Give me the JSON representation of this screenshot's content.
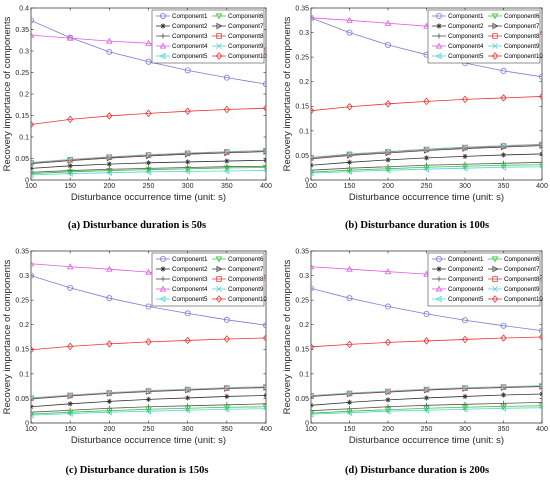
{
  "figure": {
    "colors": {
      "Component1": "#7b7bd8",
      "Component2": "#333333",
      "Component3": "#555555",
      "Component4": "#e05ae0",
      "Component5": "#49d8d8",
      "Component6": "#3fbf3f",
      "Component7": "#444444",
      "Component8": "#dd4444",
      "Component9": "#66cccc",
      "Component10": "#ee3333"
    }
  },
  "chart_data": [
    {
      "type": "line",
      "caption": "(a) Disturbance duration is 50s",
      "xlabel": "Disturbance occurrence time (unit: s)",
      "ylabel": "Recovery importance of components",
      "xlim": [
        100,
        400
      ],
      "ylim": [
        0,
        0.4
      ],
      "x_ticks": [
        "100",
        "150",
        "200",
        "250",
        "300",
        "350",
        "400"
      ],
      "y_ticks": [
        "0",
        "0.05",
        "0.1",
        "0.15",
        "0.2",
        "0.25",
        "0.3",
        "0.35",
        "0.4"
      ],
      "x": [
        100,
        150,
        200,
        250,
        300,
        350,
        400
      ],
      "legend_position": "top-right",
      "grid": false,
      "series": [
        {
          "name": "Component1",
          "marker": "circle",
          "values": [
            0.371,
            0.331,
            0.298,
            0.275,
            0.255,
            0.238,
            0.223
          ]
        },
        {
          "name": "Component2",
          "marker": "star",
          "values": [
            0.027,
            0.033,
            0.037,
            0.04,
            0.042,
            0.044,
            0.046
          ]
        },
        {
          "name": "Component3",
          "marker": "plus",
          "values": [
            0.018,
            0.022,
            0.025,
            0.027,
            0.029,
            0.031,
            0.032
          ]
        },
        {
          "name": "Component4",
          "marker": "triangle-up",
          "values": [
            0.337,
            0.33,
            0.323,
            0.318,
            0.313,
            0.309,
            0.305
          ]
        },
        {
          "name": "Component5",
          "marker": "triangle-left",
          "values": [
            0.012,
            0.015,
            0.017,
            0.019,
            0.02,
            0.021,
            0.022
          ]
        },
        {
          "name": "Component6",
          "marker": "triangle-down",
          "values": [
            0.015,
            0.019,
            0.022,
            0.024,
            0.026,
            0.028,
            0.029
          ]
        },
        {
          "name": "Component7",
          "marker": "triangle-right",
          "values": [
            0.038,
            0.045,
            0.051,
            0.056,
            0.06,
            0.063,
            0.066
          ]
        },
        {
          "name": "Component8",
          "marker": "square",
          "values": [
            0.04,
            0.047,
            0.053,
            0.058,
            0.062,
            0.065,
            0.068
          ]
        },
        {
          "name": "Component9",
          "marker": "x",
          "values": [
            0.041,
            0.048,
            0.054,
            0.059,
            0.063,
            0.066,
            0.069
          ]
        },
        {
          "name": "Component10",
          "marker": "diamond",
          "values": [
            0.129,
            0.141,
            0.149,
            0.155,
            0.16,
            0.164,
            0.167
          ]
        }
      ]
    },
    {
      "type": "line",
      "caption": "(b) Disturbance duration is 100s",
      "xlabel": "Disturbance occurrence time (unit: s)",
      "ylabel": "Recovery importance of components",
      "xlim": [
        100,
        400
      ],
      "ylim": [
        0,
        0.35
      ],
      "x_ticks": [
        "100",
        "150",
        "200",
        "250",
        "300",
        "350",
        "400"
      ],
      "y_ticks": [
        "0",
        "0.05",
        "0.1",
        "0.15",
        "0.2",
        "0.25",
        "0.3",
        "0.35"
      ],
      "x": [
        100,
        150,
        200,
        250,
        300,
        350,
        400
      ],
      "legend_position": "top-right",
      "grid": false,
      "series": [
        {
          "name": "Component1",
          "marker": "circle",
          "values": [
            0.33,
            0.3,
            0.275,
            0.255,
            0.238,
            0.222,
            0.21
          ]
        },
        {
          "name": "Component2",
          "marker": "star",
          "values": [
            0.03,
            0.036,
            0.041,
            0.045,
            0.048,
            0.051,
            0.053
          ]
        },
        {
          "name": "Component3",
          "marker": "plus",
          "values": [
            0.02,
            0.024,
            0.027,
            0.03,
            0.032,
            0.034,
            0.036
          ]
        },
        {
          "name": "Component4",
          "marker": "triangle-up",
          "values": [
            0.33,
            0.325,
            0.319,
            0.313,
            0.308,
            0.304,
            0.3
          ]
        },
        {
          "name": "Component5",
          "marker": "triangle-left",
          "values": [
            0.014,
            0.017,
            0.02,
            0.022,
            0.024,
            0.026,
            0.027
          ]
        },
        {
          "name": "Component6",
          "marker": "triangle-down",
          "values": [
            0.016,
            0.02,
            0.023,
            0.026,
            0.028,
            0.03,
            0.031
          ]
        },
        {
          "name": "Component7",
          "marker": "triangle-right",
          "values": [
            0.043,
            0.05,
            0.055,
            0.06,
            0.064,
            0.067,
            0.07
          ]
        },
        {
          "name": "Component8",
          "marker": "square",
          "values": [
            0.045,
            0.052,
            0.057,
            0.062,
            0.066,
            0.069,
            0.072
          ]
        },
        {
          "name": "Component9",
          "marker": "x",
          "values": [
            0.046,
            0.053,
            0.058,
            0.063,
            0.067,
            0.07,
            0.073
          ]
        },
        {
          "name": "Component10",
          "marker": "diamond",
          "values": [
            0.141,
            0.149,
            0.155,
            0.16,
            0.164,
            0.167,
            0.17
          ]
        }
      ]
    },
    {
      "type": "line",
      "caption": "(c) Disturbance duration is 150s",
      "xlabel": "Disturbance occurrence time (unit: s)",
      "ylabel": "Recovery importance of components",
      "xlim": [
        100,
        400
      ],
      "ylim": [
        0,
        0.35
      ],
      "x_ticks": [
        "100",
        "150",
        "200",
        "250",
        "300",
        "350",
        "400"
      ],
      "y_ticks": [
        "0",
        "0.05",
        "0.1",
        "0.15",
        "0.2",
        "0.25",
        "0.3",
        "0.35"
      ],
      "x": [
        100,
        150,
        200,
        250,
        300,
        350,
        400
      ],
      "legend_position": "top-right",
      "grid": false,
      "series": [
        {
          "name": "Component1",
          "marker": "circle",
          "values": [
            0.3,
            0.275,
            0.254,
            0.237,
            0.223,
            0.21,
            0.199
          ]
        },
        {
          "name": "Component2",
          "marker": "star",
          "values": [
            0.033,
            0.039,
            0.044,
            0.048,
            0.051,
            0.054,
            0.056
          ]
        },
        {
          "name": "Component3",
          "marker": "plus",
          "values": [
            0.022,
            0.026,
            0.03,
            0.033,
            0.035,
            0.037,
            0.039
          ]
        },
        {
          "name": "Component4",
          "marker": "triangle-up",
          "values": [
            0.324,
            0.318,
            0.313,
            0.307,
            0.302,
            0.298,
            0.295
          ]
        },
        {
          "name": "Component5",
          "marker": "triangle-left",
          "values": [
            0.016,
            0.019,
            0.022,
            0.024,
            0.026,
            0.028,
            0.029
          ]
        },
        {
          "name": "Component6",
          "marker": "triangle-down",
          "values": [
            0.018,
            0.022,
            0.025,
            0.028,
            0.03,
            0.032,
            0.033
          ]
        },
        {
          "name": "Component7",
          "marker": "triangle-right",
          "values": [
            0.049,
            0.055,
            0.06,
            0.064,
            0.067,
            0.07,
            0.072
          ]
        },
        {
          "name": "Component8",
          "marker": "square",
          "values": [
            0.05,
            0.056,
            0.061,
            0.065,
            0.068,
            0.071,
            0.073
          ]
        },
        {
          "name": "Component9",
          "marker": "x",
          "values": [
            0.051,
            0.057,
            0.062,
            0.066,
            0.069,
            0.072,
            0.074
          ]
        },
        {
          "name": "Component10",
          "marker": "diamond",
          "values": [
            0.149,
            0.156,
            0.161,
            0.165,
            0.168,
            0.171,
            0.173
          ]
        }
      ]
    },
    {
      "type": "line",
      "caption": "(d) Disturbance duration is 200s",
      "xlabel": "Disturbance occurrence time (unit: s)",
      "ylabel": "Recovery importance of components",
      "xlim": [
        100,
        400
      ],
      "ylim": [
        0,
        0.35
      ],
      "x_ticks": [
        "100",
        "150",
        "200",
        "250",
        "300",
        "350",
        "400"
      ],
      "y_ticks": [
        "0",
        "0.05",
        "0.1",
        "0.15",
        "0.2",
        "0.25",
        "0.3",
        "0.35"
      ],
      "x": [
        100,
        150,
        200,
        250,
        300,
        350,
        400
      ],
      "legend_position": "top-right",
      "grid": false,
      "series": [
        {
          "name": "Component1",
          "marker": "circle",
          "values": [
            0.274,
            0.254,
            0.237,
            0.222,
            0.209,
            0.198,
            0.188
          ]
        },
        {
          "name": "Component2",
          "marker": "star",
          "values": [
            0.036,
            0.042,
            0.047,
            0.051,
            0.054,
            0.057,
            0.059
          ]
        },
        {
          "name": "Component3",
          "marker": "plus",
          "values": [
            0.025,
            0.029,
            0.033,
            0.036,
            0.038,
            0.04,
            0.042
          ]
        },
        {
          "name": "Component4",
          "marker": "triangle-up",
          "values": [
            0.318,
            0.313,
            0.308,
            0.303,
            0.299,
            0.296,
            0.293
          ]
        },
        {
          "name": "Component5",
          "marker": "triangle-left",
          "values": [
            0.018,
            0.021,
            0.024,
            0.026,
            0.028,
            0.03,
            0.031
          ]
        },
        {
          "name": "Component6",
          "marker": "triangle-down",
          "values": [
            0.02,
            0.024,
            0.027,
            0.03,
            0.032,
            0.034,
            0.035
          ]
        },
        {
          "name": "Component7",
          "marker": "triangle-right",
          "values": [
            0.054,
            0.059,
            0.063,
            0.067,
            0.07,
            0.072,
            0.074
          ]
        },
        {
          "name": "Component8",
          "marker": "square",
          "values": [
            0.055,
            0.06,
            0.064,
            0.068,
            0.071,
            0.073,
            0.075
          ]
        },
        {
          "name": "Component9",
          "marker": "x",
          "values": [
            0.056,
            0.061,
            0.065,
            0.069,
            0.072,
            0.074,
            0.076
          ]
        },
        {
          "name": "Component10",
          "marker": "diamond",
          "values": [
            0.155,
            0.16,
            0.164,
            0.167,
            0.17,
            0.173,
            0.175
          ]
        }
      ]
    }
  ]
}
